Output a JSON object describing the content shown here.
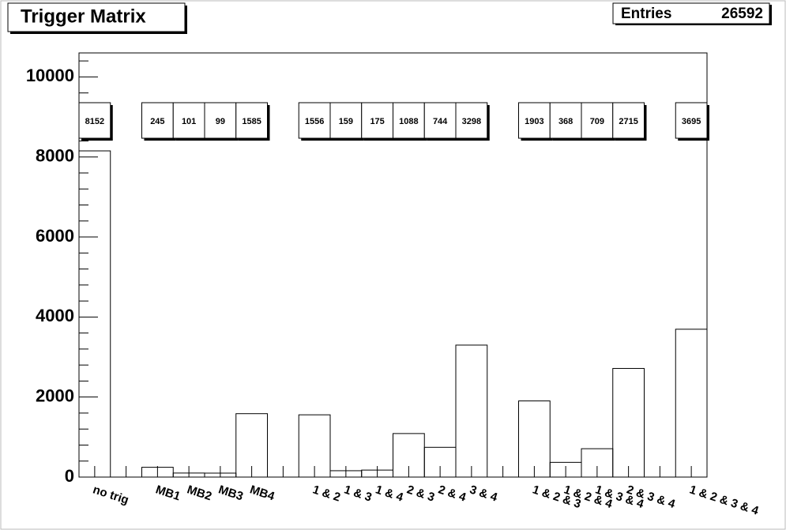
{
  "chart_data": {
    "type": "histogram",
    "title": "Trigger Matrix",
    "stats": {
      "label": "Entries",
      "value": 26592
    },
    "categories": [
      "no trig",
      null,
      "MB1",
      "MB2",
      "MB3",
      "MB4",
      null,
      "1 & 2",
      "1 & 3",
      "1 & 4",
      "2 & 3",
      "2 & 4",
      "3 & 4",
      null,
      "1 & 2 & 3",
      "1 & 2 & 4",
      "1 & 3 & 4",
      "2 & 3 & 4",
      null,
      "1 & 2 & 3 & 4"
    ],
    "values": [
      8152,
      0,
      245,
      101,
      99,
      1585,
      0,
      1556,
      159,
      175,
      1088,
      744,
      3298,
      0,
      1903,
      368,
      709,
      2715,
      0,
      3695
    ],
    "color": "#000000",
    "ylim": [
      0,
      10600
    ],
    "yticks": [
      0,
      2000,
      4000,
      6000,
      8000,
      10000
    ],
    "yticks_minor": [
      400,
      800,
      1200,
      1600,
      2400,
      2800,
      3200,
      3600,
      4400,
      4800,
      5200,
      5600,
      6400,
      6800,
      7200,
      7600,
      8400,
      8800,
      9200,
      9600,
      10400
    ]
  }
}
